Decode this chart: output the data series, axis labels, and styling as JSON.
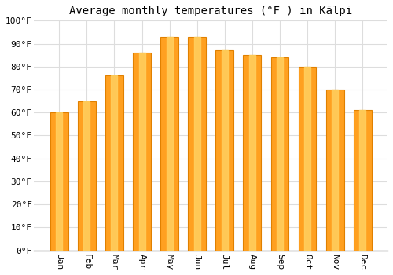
{
  "title": "Average monthly temperatures (°F ) in Kālpi",
  "months": [
    "Jan",
    "Feb",
    "Mar",
    "Apr",
    "May",
    "Jun",
    "Jul",
    "Aug",
    "Sep",
    "Oct",
    "Nov",
    "Dec"
  ],
  "values": [
    60,
    65,
    76,
    86,
    93,
    93,
    87,
    85,
    84,
    80,
    70,
    61
  ],
  "bar_color_main": "#FFA020",
  "bar_color_edge": "#E08000",
  "bar_color_light": "#FFD060",
  "ylim": [
    0,
    100
  ],
  "yticks": [
    0,
    10,
    20,
    30,
    40,
    50,
    60,
    70,
    80,
    90,
    100
  ],
  "ytick_labels": [
    "0°F",
    "10°F",
    "20°F",
    "30°F",
    "40°F",
    "50°F",
    "60°F",
    "70°F",
    "80°F",
    "90°F",
    "100°F"
  ],
  "background_color": "#FFFFFF",
  "plot_bg_color": "#FFFFFF",
  "grid_color": "#DDDDDD",
  "title_fontsize": 10,
  "tick_fontsize": 8,
  "figsize": [
    5.0,
    3.5
  ],
  "dpi": 100
}
